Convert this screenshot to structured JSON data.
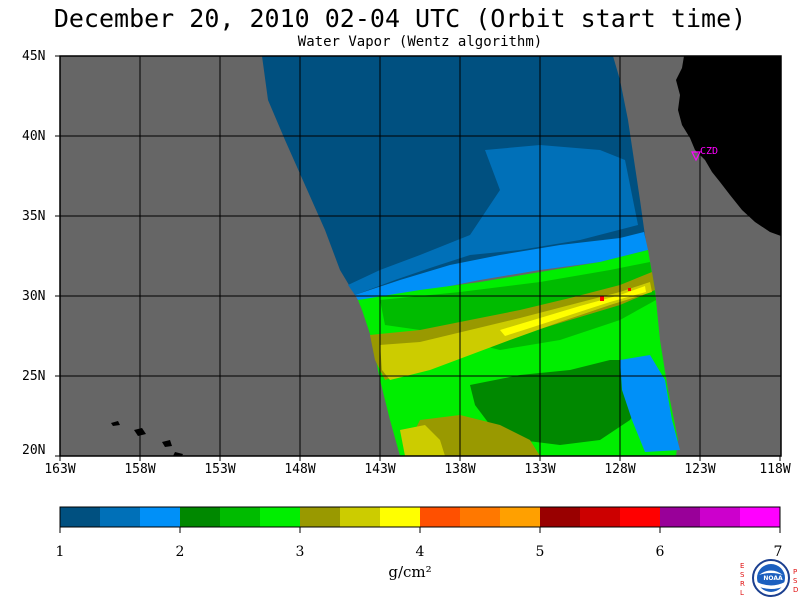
{
  "title": "December 20, 2010  02-04 UTC  (Orbit start time)",
  "subtitle": "Water Vapor (Wentz algorithm)",
  "map": {
    "lat_ticks": [
      "45N",
      "40N",
      "35N",
      "30N",
      "25N",
      "20N"
    ],
    "lon_ticks": [
      "163W",
      "158W",
      "153W",
      "148W",
      "143W",
      "138W",
      "133W",
      "128W",
      "123W",
      "118W"
    ],
    "station_label": "CZD",
    "colors": {
      "land": "#000000",
      "no_data": "#666666",
      "grid": "#000000",
      "station": "#ff00ff"
    }
  },
  "colorbar": {
    "tick_labels": [
      "1",
      "2",
      "3",
      "4",
      "5",
      "6",
      "7"
    ],
    "units": "g/cm²",
    "colors": [
      "#005080",
      "#0070b8",
      "#0090f8",
      "#008800",
      "#00bb00",
      "#00ee00",
      "#999900",
      "#cccc00",
      "#ffff00",
      "#ff5000",
      "#ff7800",
      "#ffa000",
      "#990000",
      "#cc0000",
      "#ff0000",
      "#990099",
      "#cc00cc",
      "#ff00ff"
    ]
  },
  "logo": {
    "left_text": "E S R L",
    "right_text": "P S D",
    "center_text": "NOAA"
  }
}
